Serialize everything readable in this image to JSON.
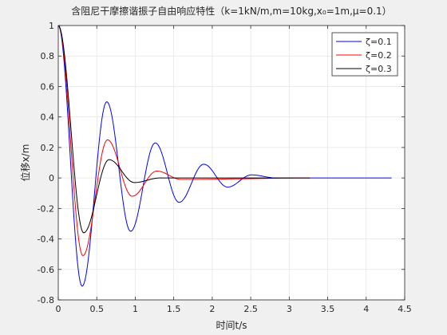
{
  "chart_data": {
    "type": "line",
    "title": "含阻尼干摩擦谐振子自由响应特性（k=1kN/m,m=10kg,x₀=1m,μ=0.1）",
    "xlabel": "时间t/s",
    "ylabel": "位移x/m",
    "xlim": [
      0,
      4.5
    ],
    "ylim": [
      -0.8,
      1
    ],
    "xticks": [
      0,
      0.5,
      1,
      1.5,
      2,
      2.5,
      3,
      3.5,
      4,
      4.5
    ],
    "xtick_labels": [
      "0",
      "0.5",
      "1",
      "1.5",
      "2",
      "2.5",
      "3",
      "3.5",
      "4",
      "4.5"
    ],
    "yticks": [
      -0.8,
      -0.6,
      -0.4,
      -0.2,
      0,
      0.2,
      0.4,
      0.6,
      0.8,
      1
    ],
    "ytick_labels": [
      "-0.8",
      "-0.6",
      "-0.4",
      "-0.2",
      "0",
      "0.2",
      "0.4",
      "0.6",
      "0.8",
      "1"
    ],
    "grid": true,
    "legend_position": "top-right",
    "series": [
      {
        "name": "ζ=0.1",
        "color": "#0000ff",
        "x": [
          0,
          0.31,
          0.63,
          0.94,
          1.26,
          1.57,
          1.89,
          2.2,
          2.51,
          2.83,
          4.33
        ],
        "y": [
          1,
          -0.71,
          0.5,
          -0.35,
          0.23,
          -0.16,
          0.09,
          -0.06,
          0.02,
          0,
          0
        ]
      },
      {
        "name": "ζ=0.2",
        "color": "#ff0000",
        "x": [
          0,
          0.32,
          0.64,
          0.96,
          1.28,
          1.6,
          3.27
        ],
        "y": [
          1,
          -0.51,
          0.25,
          -0.12,
          0.045,
          -0.01,
          0
        ]
      },
      {
        "name": "ζ=0.3",
        "color": "#000000",
        "x": [
          0,
          0.33,
          0.66,
          0.99,
          1.32,
          3.27
        ],
        "y": [
          1,
          -0.36,
          0.12,
          -0.03,
          0,
          0
        ]
      }
    ]
  }
}
